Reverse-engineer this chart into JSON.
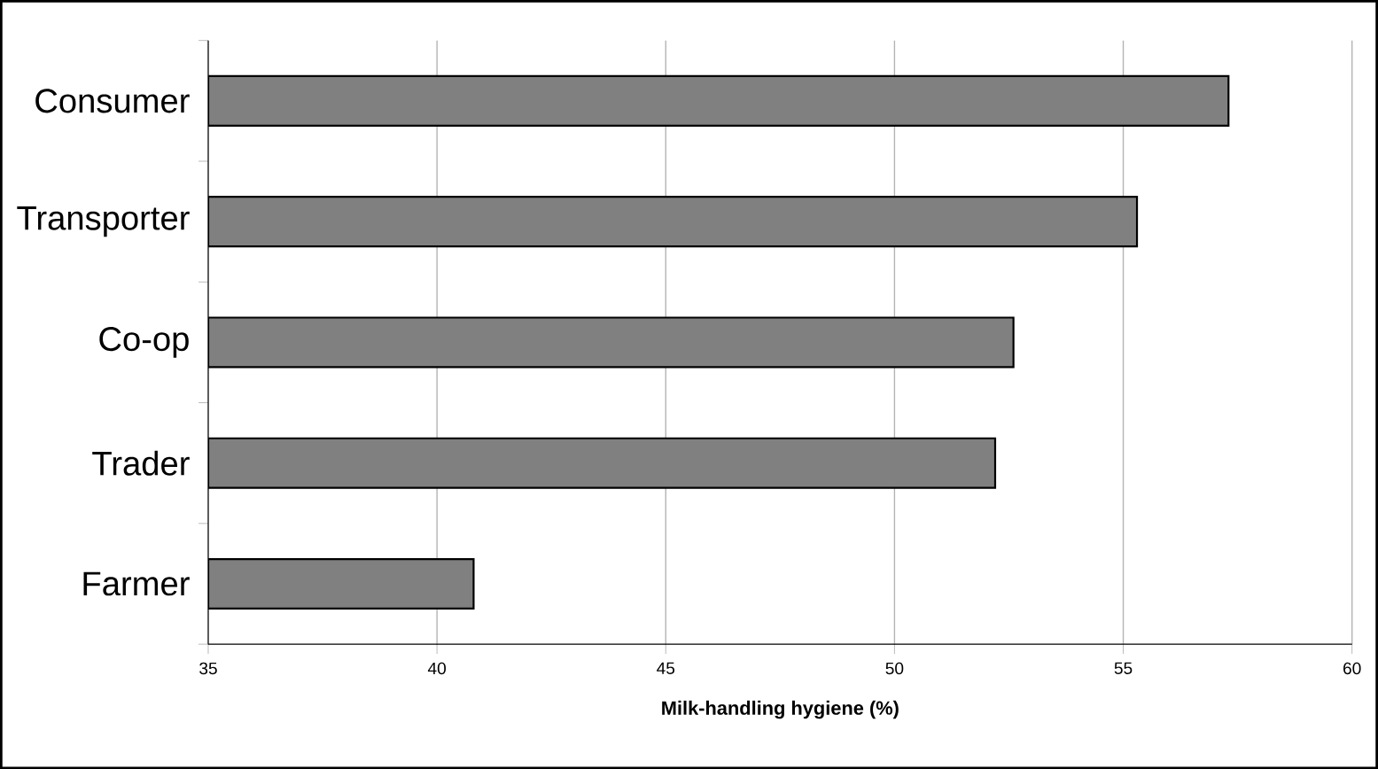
{
  "chart_data": {
    "type": "bar",
    "orientation": "horizontal",
    "categories": [
      "Consumer",
      "Transporter",
      "Co-op",
      "Trader",
      "Farmer"
    ],
    "values": [
      57.3,
      55.3,
      52.6,
      52.2,
      40.8
    ],
    "color": "#808080",
    "xlabel": "Milk-handling hygiene (%)",
    "xlim": [
      35,
      60
    ],
    "xticks": [
      35,
      40,
      45,
      50,
      55,
      60
    ],
    "grid": "x"
  }
}
